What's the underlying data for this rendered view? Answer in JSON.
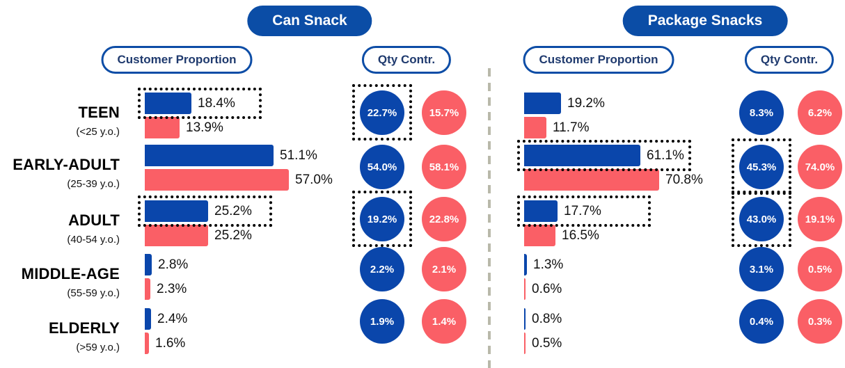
{
  "chart_data": {
    "type": "bar",
    "layout_hint": "two side-by-side panels; each panel has horizontal paired bars (customer proportion) and circle markers (qty contribution); dotted boxes highlight selected blue values; no axes or gridlines",
    "unit": "%",
    "groups": [
      {
        "name": "TEEN",
        "age": "(<25 y.o.)"
      },
      {
        "name": "EARLY-ADULT",
        "age": "(25-39 y.o.)"
      },
      {
        "name": "ADULT",
        "age": "(40-54 y.o.)"
      },
      {
        "name": "MIDDLE-AGE",
        "age": "(55-59 y.o.)"
      },
      {
        "name": "ELDERLY",
        "age": "(>59 y.o.)"
      }
    ],
    "panels": [
      {
        "title": "Can Snack",
        "customer_proportion_label": "Customer Proportion",
        "qty_contr_label": "Qty Contr.",
        "customer_proportion": {
          "blue": [
            18.4,
            51.1,
            25.2,
            2.8,
            2.4
          ],
          "red": [
            13.9,
            57.0,
            25.2,
            2.3,
            1.6
          ]
        },
        "qty_contr": {
          "blue": [
            22.7,
            54.0,
            19.2,
            2.2,
            1.9
          ],
          "red": [
            15.7,
            58.1,
            22.8,
            2.1,
            1.4
          ]
        },
        "highlighted_rows_customer_blue": [
          0,
          2
        ],
        "highlighted_rows_qty_blue": [
          0,
          2
        ]
      },
      {
        "title": "Package Snacks",
        "customer_proportion_label": "Customer Proportion",
        "qty_contr_label": "Qty Contr.",
        "customer_proportion": {
          "blue": [
            19.2,
            61.1,
            17.7,
            1.3,
            0.8
          ],
          "red": [
            11.7,
            70.8,
            16.5,
            0.6,
            0.5
          ]
        },
        "qty_contr": {
          "blue": [
            8.3,
            45.3,
            43.0,
            3.1,
            0.4
          ],
          "red": [
            6.2,
            74.0,
            19.1,
            0.5,
            0.3
          ]
        },
        "highlighted_rows_customer_blue": [
          1,
          2
        ],
        "highlighted_rows_qty_blue": [
          1,
          2
        ]
      }
    ],
    "colors": {
      "blue": "#0a46ab",
      "red": "#fa5f66",
      "title_pill_bg": "#0b4da6",
      "title_pill_text": "#ffffff",
      "outline_pill_border": "#0d4da6",
      "outline_pill_text": "#1f3a6e",
      "value_text": "#111111",
      "group_text": "#000000",
      "divider": "#b9b9aa",
      "highlight": "#000000"
    }
  }
}
